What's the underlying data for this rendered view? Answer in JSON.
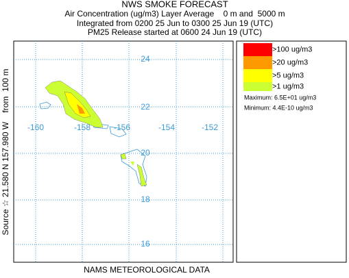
{
  "header": {
    "title": "NWS SMOKE FORECAST",
    "lines": [
      "Air Concentration (ug/m3) Layer Average    0 m and  5000 m",
      "Integrated from 0200 25 Jun to 0300 25 Jun 19 (UTC)",
      "PM25 Release started at 0600 24 Jun 19 (UTC)"
    ]
  },
  "source_label": "Source ☆ 21.580 N 157.980 W    from  100 m",
  "footer": "NAMS METEOROLOGICAL DATA",
  "map": {
    "lat_labels": [
      "24",
      "22",
      "20",
      "18",
      "16"
    ],
    "lon_labels": [
      "-160",
      "-158",
      "-156",
      "-154",
      "-152"
    ]
  },
  "legend": {
    "entries": [
      {
        "label": ">100 ug/m3",
        "color": "#ff0000"
      },
      {
        "label": ">20 ug/m3",
        "color": "#ff9900"
      },
      {
        "label": ">5 ug/m3",
        "color": "#ffff00"
      },
      {
        "label": ">1 ug/m3",
        "color": "#ccff33"
      }
    ],
    "maximum": "Maximum: 6.5E+01 ug/m3",
    "minimum": "Minimum: 4.4E-10 ug/m3"
  }
}
